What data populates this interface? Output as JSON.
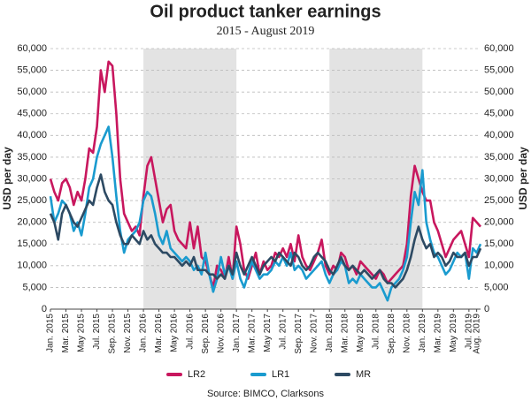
{
  "chart_data": {
    "type": "line",
    "title": "Oil product tanker earnings",
    "subtitle": "2015 - August 2019",
    "y_label": "USD per day",
    "source": "Source: BIMCO, Clarksons",
    "ylim": [
      0,
      60000
    ],
    "yticks": [
      0,
      {
        "value": 5000,
        "label": "5,000"
      },
      {
        "value": 10000,
        "label": "10,000"
      },
      {
        "value": 15000,
        "label": "15,000"
      },
      {
        "value": 20000,
        "label": "20,000"
      },
      {
        "value": 25000,
        "label": "25,000"
      },
      {
        "value": 30000,
        "label": "30,000"
      },
      {
        "value": 35000,
        "label": "35,000"
      },
      {
        "value": 40000,
        "label": "40,000"
      },
      {
        "value": 45000,
        "label": "45,000"
      },
      {
        "value": 50000,
        "label": "50,000"
      },
      {
        "value": 55000,
        "label": "55,000"
      },
      {
        "value": 60000,
        "label": "60,000"
      }
    ],
    "grid": true,
    "legend": "bottom",
    "categories": [
      "Jan. 2015",
      null,
      null,
      null,
      "Mar. 2015",
      null,
      null,
      null,
      "May 2015",
      null,
      null,
      null,
      "Jul. 2015",
      null,
      null,
      null,
      "Sep. 2015",
      null,
      null,
      null,
      "Nov. 2015",
      null,
      null,
      null,
      "Jan. 2016",
      null,
      null,
      null,
      "Mar. 2016",
      null,
      null,
      null,
      "May 2016",
      null,
      null,
      null,
      "Jul. 2016",
      null,
      null,
      null,
      "Sep. 2016",
      null,
      null,
      null,
      "Nov. 2016",
      null,
      null,
      null,
      "Jan. 2017",
      null,
      null,
      null,
      "Mar. 2017",
      null,
      null,
      null,
      "May 2017",
      null,
      null,
      null,
      "Jul. 2017",
      null,
      null,
      null,
      "Sep. 2017",
      null,
      null,
      null,
      "Nov. 2017",
      null,
      null,
      null,
      "Jan. 2018",
      null,
      null,
      null,
      "Mar. 2018",
      null,
      null,
      null,
      "May 2018",
      null,
      null,
      null,
      "Jul. 2018",
      null,
      null,
      null,
      "Sep. 2018",
      null,
      null,
      null,
      "Nov. 2018",
      null,
      null,
      null,
      "Jan. 2019",
      null,
      null,
      null,
      "Mar. 2019",
      null,
      null,
      null,
      "May 2019",
      null,
      null,
      null,
      "Jul. 2019",
      null,
      "Aug. 2019",
      null
    ],
    "series": [
      {
        "name": "LR2",
        "color": "#c8175e",
        "values": [
          30000,
          27000,
          25000,
          29000,
          30000,
          28000,
          24000,
          27000,
          25000,
          30000,
          37000,
          36000,
          42000,
          55000,
          50000,
          57000,
          56000,
          45000,
          30000,
          22000,
          20000,
          18000,
          19000,
          17000,
          26000,
          33000,
          35000,
          30000,
          25000,
          20000,
          23000,
          24000,
          18000,
          16000,
          15000,
          14000,
          20000,
          14000,
          19000,
          12000,
          11000,
          8000,
          5000,
          10000,
          9000,
          7000,
          12000,
          7000,
          19000,
          15000,
          9000,
          7000,
          10000,
          13000,
          8000,
          11000,
          9000,
          10000,
          13000,
          12000,
          14000,
          12000,
          15000,
          11000,
          17000,
          12000,
          10000,
          9000,
          11000,
          13000,
          16000,
          10000,
          8000,
          10000,
          9000,
          13000,
          12000,
          9000,
          10000,
          8000,
          11000,
          10000,
          9000,
          8000,
          7000,
          9000,
          8000,
          6000,
          7000,
          8000,
          9000,
          10000,
          15000,
          26000,
          33000,
          30000,
          27000,
          25000,
          25000,
          20000,
          18000,
          15000,
          12000,
          14000,
          16000,
          17000,
          18000,
          15000,
          12000,
          21000,
          20000,
          19000
        ]
      },
      {
        "name": "LR1",
        "color": "#1a9bcf",
        "values": [
          26000,
          20000,
          22000,
          25000,
          24000,
          22000,
          18000,
          20000,
          17000,
          22000,
          28000,
          30000,
          35000,
          38000,
          40000,
          42000,
          35000,
          26000,
          18000,
          13000,
          16000,
          17000,
          18000,
          20000,
          25000,
          27000,
          26000,
          22000,
          17000,
          15000,
          18000,
          14000,
          13000,
          12000,
          11000,
          12000,
          11000,
          9000,
          10000,
          8000,
          13000,
          8000,
          4000,
          7000,
          12000,
          8000,
          10000,
          7000,
          11000,
          7000,
          5000,
          8000,
          11000,
          9000,
          7000,
          8000,
          8000,
          9000,
          11000,
          10000,
          12000,
          10000,
          13000,
          9000,
          10000,
          9000,
          7000,
          8000,
          9000,
          10000,
          11000,
          8000,
          6000,
          8000,
          9000,
          11000,
          10000,
          6000,
          7000,
          6000,
          8000,
          7000,
          6000,
          5000,
          5000,
          6000,
          4000,
          2000,
          5000,
          6000,
          7000,
          9000,
          12000,
          20000,
          27000,
          24000,
          32000,
          20000,
          16000,
          13000,
          12000,
          10000,
          8000,
          9000,
          11000,
          13000,
          12000,
          13000,
          7000,
          14000,
          13000,
          15000
        ]
      },
      {
        "name": "MR",
        "color": "#2d4a63",
        "values": [
          22000,
          20000,
          16000,
          22000,
          24000,
          22000,
          20000,
          19000,
          21000,
          23000,
          25000,
          24000,
          28000,
          31000,
          27000,
          25000,
          24000,
          20000,
          17000,
          15000,
          15000,
          17000,
          16000,
          15000,
          18000,
          16000,
          17000,
          15000,
          14000,
          13000,
          13000,
          12000,
          12000,
          11000,
          10000,
          11000,
          10000,
          12000,
          9000,
          9000,
          9000,
          8000,
          8000,
          7000,
          8000,
          7000,
          10000,
          8000,
          13000,
          10000,
          8000,
          10000,
          12000,
          10000,
          8000,
          10000,
          11000,
          12000,
          11000,
          13000,
          12000,
          11000,
          10000,
          13000,
          12000,
          10000,
          9000,
          10000,
          12000,
          13000,
          12000,
          11000,
          9000,
          8000,
          10000,
          12000,
          10000,
          9000,
          10000,
          9000,
          8000,
          9000,
          8000,
          7000,
          8000,
          9000,
          7000,
          6000,
          6000,
          5000,
          6000,
          7000,
          9000,
          12000,
          16000,
          19000,
          16000,
          14000,
          15000,
          12000,
          13000,
          12000,
          10000,
          11000,
          13000,
          12000,
          12000,
          13000,
          10000,
          12000,
          12000,
          14000
        ]
      }
    ]
  }
}
